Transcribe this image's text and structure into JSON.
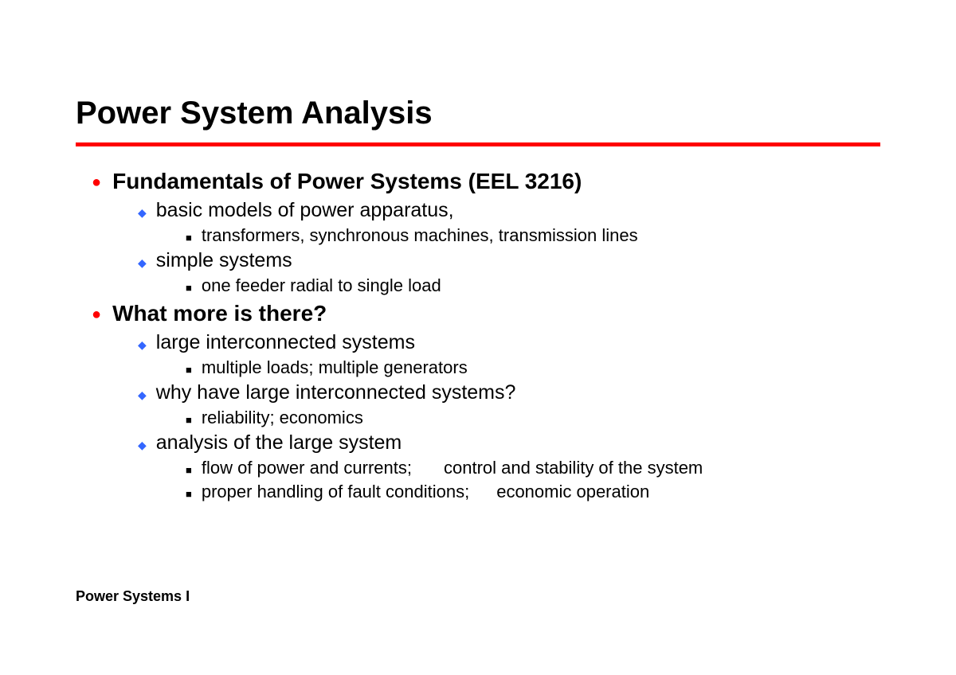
{
  "slide": {
    "title": "Power System Analysis",
    "footer": "Power Systems I",
    "colors": {
      "title_underline": "#ff0000",
      "level1_bullet": "#ff0000",
      "level2_bullet": "#3366ff",
      "level3_bullet": "#000000",
      "text": "#000000",
      "background": "#ffffff"
    },
    "typography": {
      "title_fontsize": 40,
      "level1_fontsize": 28,
      "level2_fontsize": 25,
      "level3_fontsize": 22,
      "footer_fontsize": 18,
      "font_family": "Arial"
    },
    "items": [
      {
        "level": 1,
        "text": "Fundamentals of Power Systems (EEL 3216)"
      },
      {
        "level": 2,
        "text": "basic models of power apparatus,"
      },
      {
        "level": 3,
        "text": "transformers, synchronous machines, transmission lines"
      },
      {
        "level": 2,
        "text": "simple systems"
      },
      {
        "level": 3,
        "text": "one feeder radial to single load"
      },
      {
        "level": 1,
        "text": "What more is there?"
      },
      {
        "level": 2,
        "text": "large interconnected systems"
      },
      {
        "level": 3,
        "text": "multiple loads; multiple generators"
      },
      {
        "level": 2,
        "text": "why have large interconnected systems?"
      },
      {
        "level": 3,
        "text": "reliability; economics"
      },
      {
        "level": 2,
        "text": "analysis of the large system"
      },
      {
        "level": 3,
        "text_a": "flow of power and currents;",
        "text_b": "control and stability of the system"
      },
      {
        "level": 3,
        "text_a": "proper handling of fault conditions;",
        "text_b": "economic operation"
      }
    ]
  }
}
